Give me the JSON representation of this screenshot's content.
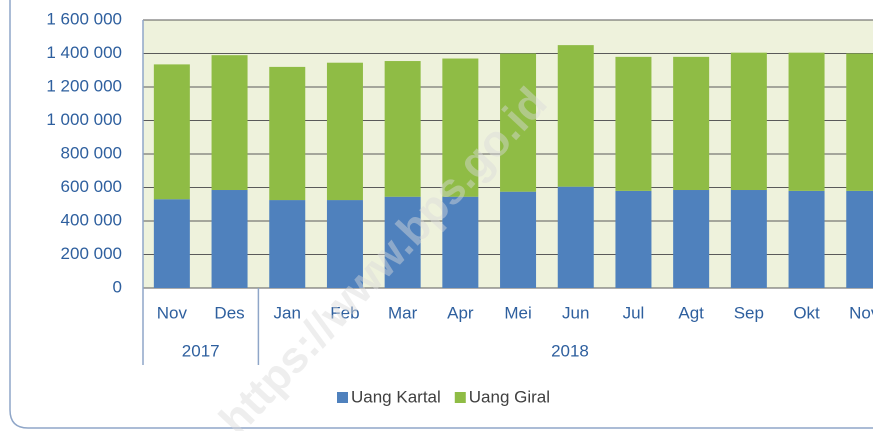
{
  "chart_data": {
    "type": "stacked_bar",
    "groups": [
      {
        "label": "2017",
        "categories": [
          "Nov",
          "Des"
        ]
      },
      {
        "label": "2018",
        "categories": [
          "Jan",
          "Feb",
          "Mar",
          "Apr",
          "Mei",
          "Jun",
          "Jul",
          "Agt",
          "Sep",
          "Okt",
          "Nov"
        ]
      }
    ],
    "series": [
      {
        "name": "Uang Kartal",
        "color": "#4f81bd",
        "values": [
          530000,
          585000,
          525000,
          525000,
          545000,
          545000,
          575000,
          605000,
          580000,
          585000,
          585000,
          580000,
          580000
        ]
      },
      {
        "name": "Uang Giral",
        "color": "#8fbc45",
        "values": [
          805000,
          805000,
          795000,
          820000,
          810000,
          825000,
          825000,
          845000,
          800000,
          795000,
          820000,
          825000,
          820000
        ]
      }
    ],
    "ylim": [
      0,
      1600000
    ],
    "yticks": [
      0,
      {
        "value": 200000,
        "label": "200 000"
      },
      {
        "value": 400000,
        "label": "400 000"
      },
      {
        "value": 600000,
        "label": "600 000"
      },
      {
        "value": 800000,
        "label": "800 000"
      },
      {
        "value": 1000000,
        "label": "1 000 000"
      },
      {
        "value": 1200000,
        "label": "1 200 000"
      },
      {
        "value": 1400000,
        "label": "1 400 000"
      },
      {
        "value": 1600000,
        "label": "1 600 000"
      }
    ],
    "grid": true,
    "legend": "bottom",
    "watermark": "https://www.bps.go.id"
  }
}
